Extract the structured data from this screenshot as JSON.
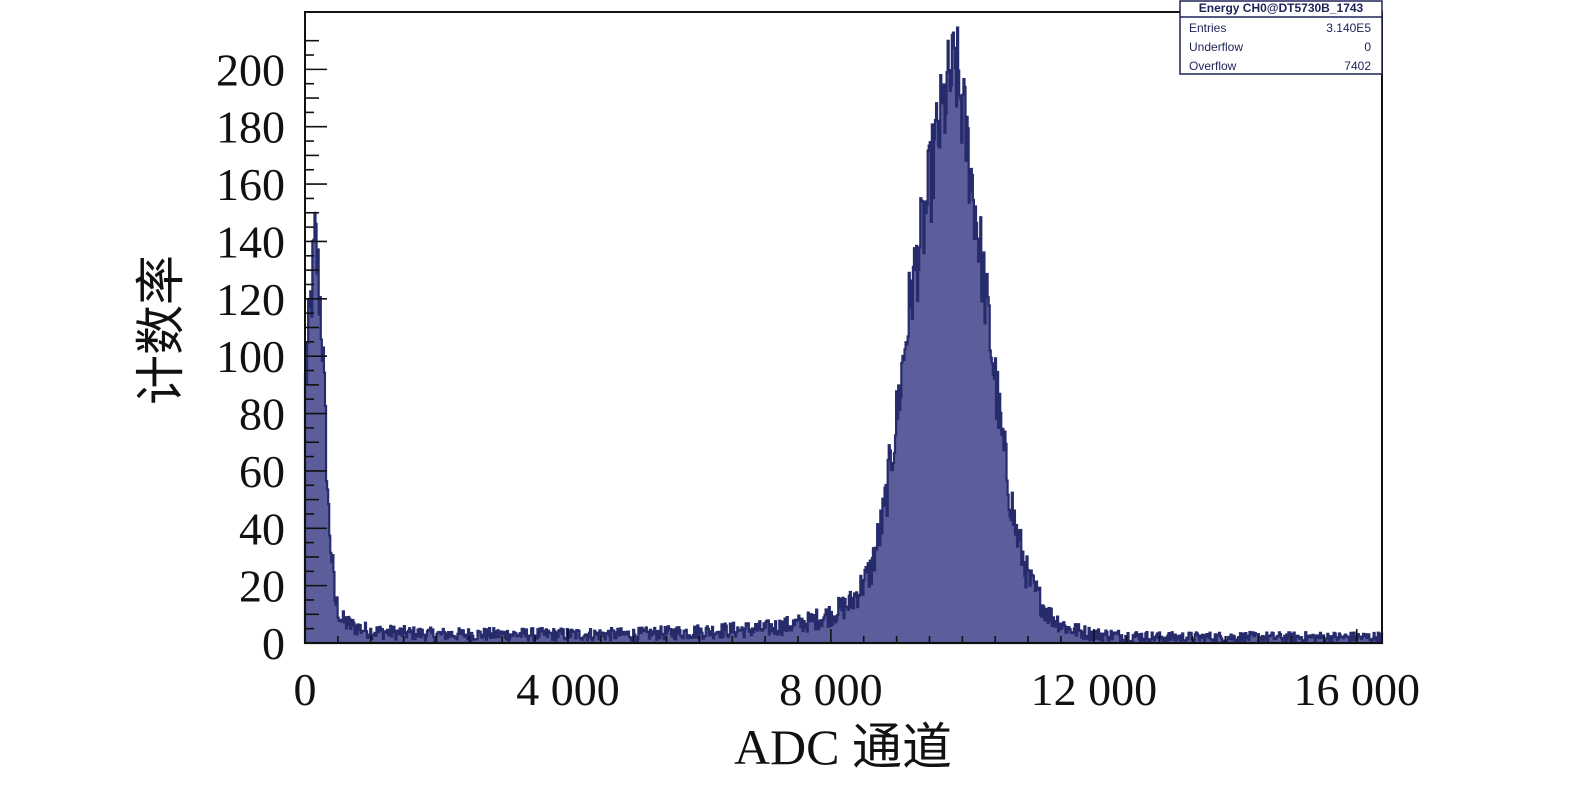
{
  "chart_data": {
    "type": "bar",
    "title": "",
    "xlabel": "ADC 通道",
    "ylabel": "计数率",
    "xlim": [
      0,
      16384
    ],
    "ylim": [
      0,
      220
    ],
    "x_ticks": [
      0,
      4000,
      8000,
      12000,
      16000
    ],
    "x_tick_labels": [
      "0",
      "4 000",
      "8 000",
      "12 000",
      "16 000"
    ],
    "y_ticks": [
      0,
      20,
      40,
      60,
      80,
      100,
      120,
      140,
      160,
      180,
      200
    ],
    "y_tick_labels": [
      "0",
      "20",
      "40",
      "60",
      "80",
      "100",
      "120",
      "140",
      "160",
      "180",
      "200"
    ],
    "fill_color": "#5b5e9a",
    "line_color": "#262b6b",
    "x": [
      0,
      150,
      250,
      350,
      450,
      550,
      700,
      1000,
      2000,
      3000,
      4000,
      5000,
      6000,
      7000,
      7600,
      8000,
      8300,
      8600,
      8800,
      9000,
      9200,
      9400,
      9600,
      9800,
      9900,
      10000,
      10200,
      10400,
      10600,
      10800,
      11000,
      11300,
      11600,
      12000,
      13000,
      14000,
      15000,
      16000,
      16384
    ],
    "values": [
      90,
      142,
      110,
      45,
      15,
      8,
      6,
      4,
      3,
      3,
      3,
      3,
      4,
      5,
      7,
      10,
      14,
      25,
      45,
      80,
      120,
      145,
      175,
      196,
      200,
      185,
      150,
      110,
      70,
      40,
      22,
      10,
      5,
      3,
      2,
      2,
      2,
      2,
      2
    ],
    "stats_box": {
      "title": "Energy CH0@DT5730B_1743",
      "rows": [
        {
          "label": "Entries",
          "value": "3.140E5"
        },
        {
          "label": "Underflow",
          "value": "0"
        },
        {
          "label": "Overflow",
          "value": "7402"
        }
      ]
    }
  }
}
